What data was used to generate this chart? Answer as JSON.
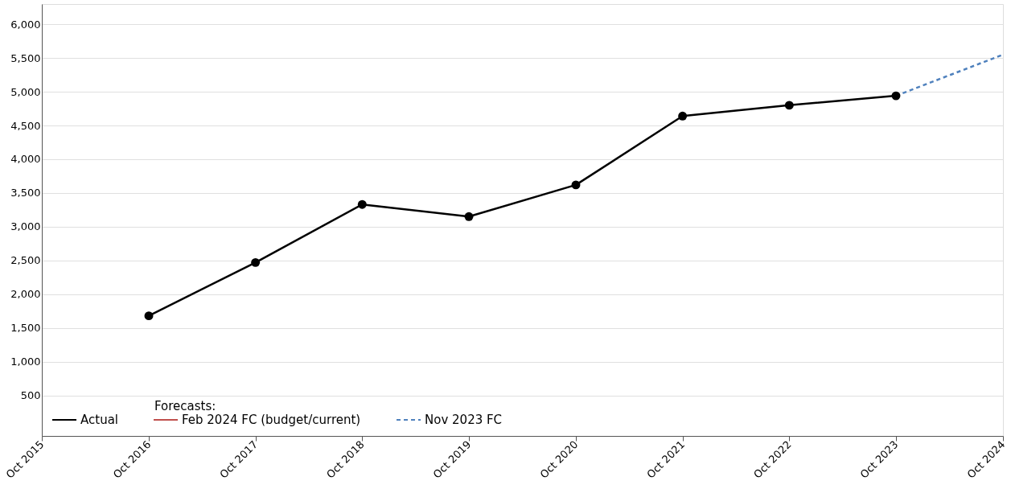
{
  "chart_data": {
    "type": "line",
    "x": [
      "2016-10",
      "2017-10",
      "2018-10",
      "2019-10",
      "2020-10",
      "2021-10",
      "2022-10",
      "2023-10"
    ],
    "series": [
      {
        "name": "Actual",
        "color": "#000000",
        "marker": "circle",
        "line_style": "solid",
        "values": [
          1680,
          2470,
          3330,
          3150,
          3620,
          4640,
          4800,
          4940
        ]
      },
      {
        "name": "Feb 2024 FC (budget/current)",
        "color": "#c0504d",
        "line_style": "solid",
        "values": [
          null,
          null,
          null,
          null,
          null,
          null,
          null,
          null
        ]
      },
      {
        "name": "Nov 2023 FC",
        "color": "#4f81bd",
        "marker": "none",
        "line_style": "dashed",
        "x": [
          "2023-10",
          "2024-10"
        ],
        "values": [
          4940,
          5550
        ]
      }
    ],
    "xlim": [
      "2015-10",
      "2024-10"
    ],
    "xticks": [
      {
        "value": "2015-10",
        "label": "Oct 2015"
      },
      {
        "value": "2016-10",
        "label": "Oct 2016"
      },
      {
        "value": "2017-10",
        "label": "Oct 2017"
      },
      {
        "value": "2018-10",
        "label": "Oct 2018"
      },
      {
        "value": "2019-10",
        "label": "Oct 2019"
      },
      {
        "value": "2020-10",
        "label": "Oct 2020"
      },
      {
        "value": "2021-10",
        "label": "Oct 2021"
      },
      {
        "value": "2022-10",
        "label": "Oct 2022"
      },
      {
        "value": "2023-10",
        "label": "Oct 2023"
      },
      {
        "value": "2024-10",
        "label": "Oct 2024"
      }
    ],
    "ylim": [
      -100,
      6300
    ],
    "yticks": [
      {
        "value": 500,
        "label": "500"
      },
      {
        "value": 1000,
        "label": "1,000"
      },
      {
        "value": 1500,
        "label": "1,500"
      },
      {
        "value": 2000,
        "label": "2,000"
      },
      {
        "value": 2500,
        "label": "2,500"
      },
      {
        "value": 3000,
        "label": "3,000"
      },
      {
        "value": 3500,
        "label": "3,500"
      },
      {
        "value": 4000,
        "label": "4,000"
      },
      {
        "value": 4500,
        "label": "4,500"
      },
      {
        "value": 5000,
        "label": "5,000"
      },
      {
        "value": 5500,
        "label": "5,500"
      },
      {
        "value": 6000,
        "label": "6,000"
      }
    ],
    "grid": "y",
    "legend": "bottom left",
    "annotations": [
      "Forecasts:"
    ]
  }
}
